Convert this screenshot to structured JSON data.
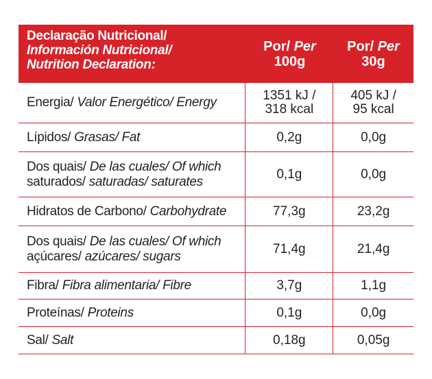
{
  "header": {
    "line1": "Declaração Nutricional/",
    "line2": "Información Nutricional/",
    "line3": "Nutrition Declaration:",
    "col2_a": "Por/ ",
    "col2_b": "Per",
    "col2_c": "100g",
    "col3_a": "Por/ ",
    "col3_b": "Per",
    "col3_c": "30g"
  },
  "rows": [
    {
      "pt": "Energia/ ",
      "es": "Valor Energético/ Energy",
      "pt2": "",
      "es2": "",
      "v100a": "1351 kJ /",
      "v100b": "318 kcal",
      "v30a": "405 kJ /",
      "v30b": "95 kcal"
    },
    {
      "pt": "Lípidos/ ",
      "es": "Grasas/ Fat",
      "v100": "0,2g",
      "v30": "0,0g"
    },
    {
      "pt": "Dos quais/ ",
      "es": "De las cuales/ Of which",
      "pt2": "saturados/ ",
      "es2": "saturadas/ saturates",
      "v100": "0,1g",
      "v30": "0,0g"
    },
    {
      "pt": "Hidratos de Carbono/ ",
      "es": "Carbohydrate",
      "v100": "77,3g",
      "v30": "23,2g"
    },
    {
      "pt": "Dos quais/ ",
      "es": "De las cuales/ Of which",
      "pt2": "açúcares/ ",
      "es2": "azúcares/ sugars",
      "v100": "71,4g",
      "v30": "21,4g"
    },
    {
      "pt": "Fibra/ ",
      "es": "Fibra alimentaria/ Fibre",
      "v100": "3,7g",
      "v30": "1,1g"
    },
    {
      "pt": "Proteínas/ ",
      "es": "Proteins",
      "v100": "0,1g",
      "v30": "0,0g"
    },
    {
      "pt": "Sal/ ",
      "es": "Salt",
      "v100": "0,18g",
      "v30": "0,05g"
    }
  ],
  "colors": {
    "accent": "#d8222a",
    "text": "#231f20"
  }
}
